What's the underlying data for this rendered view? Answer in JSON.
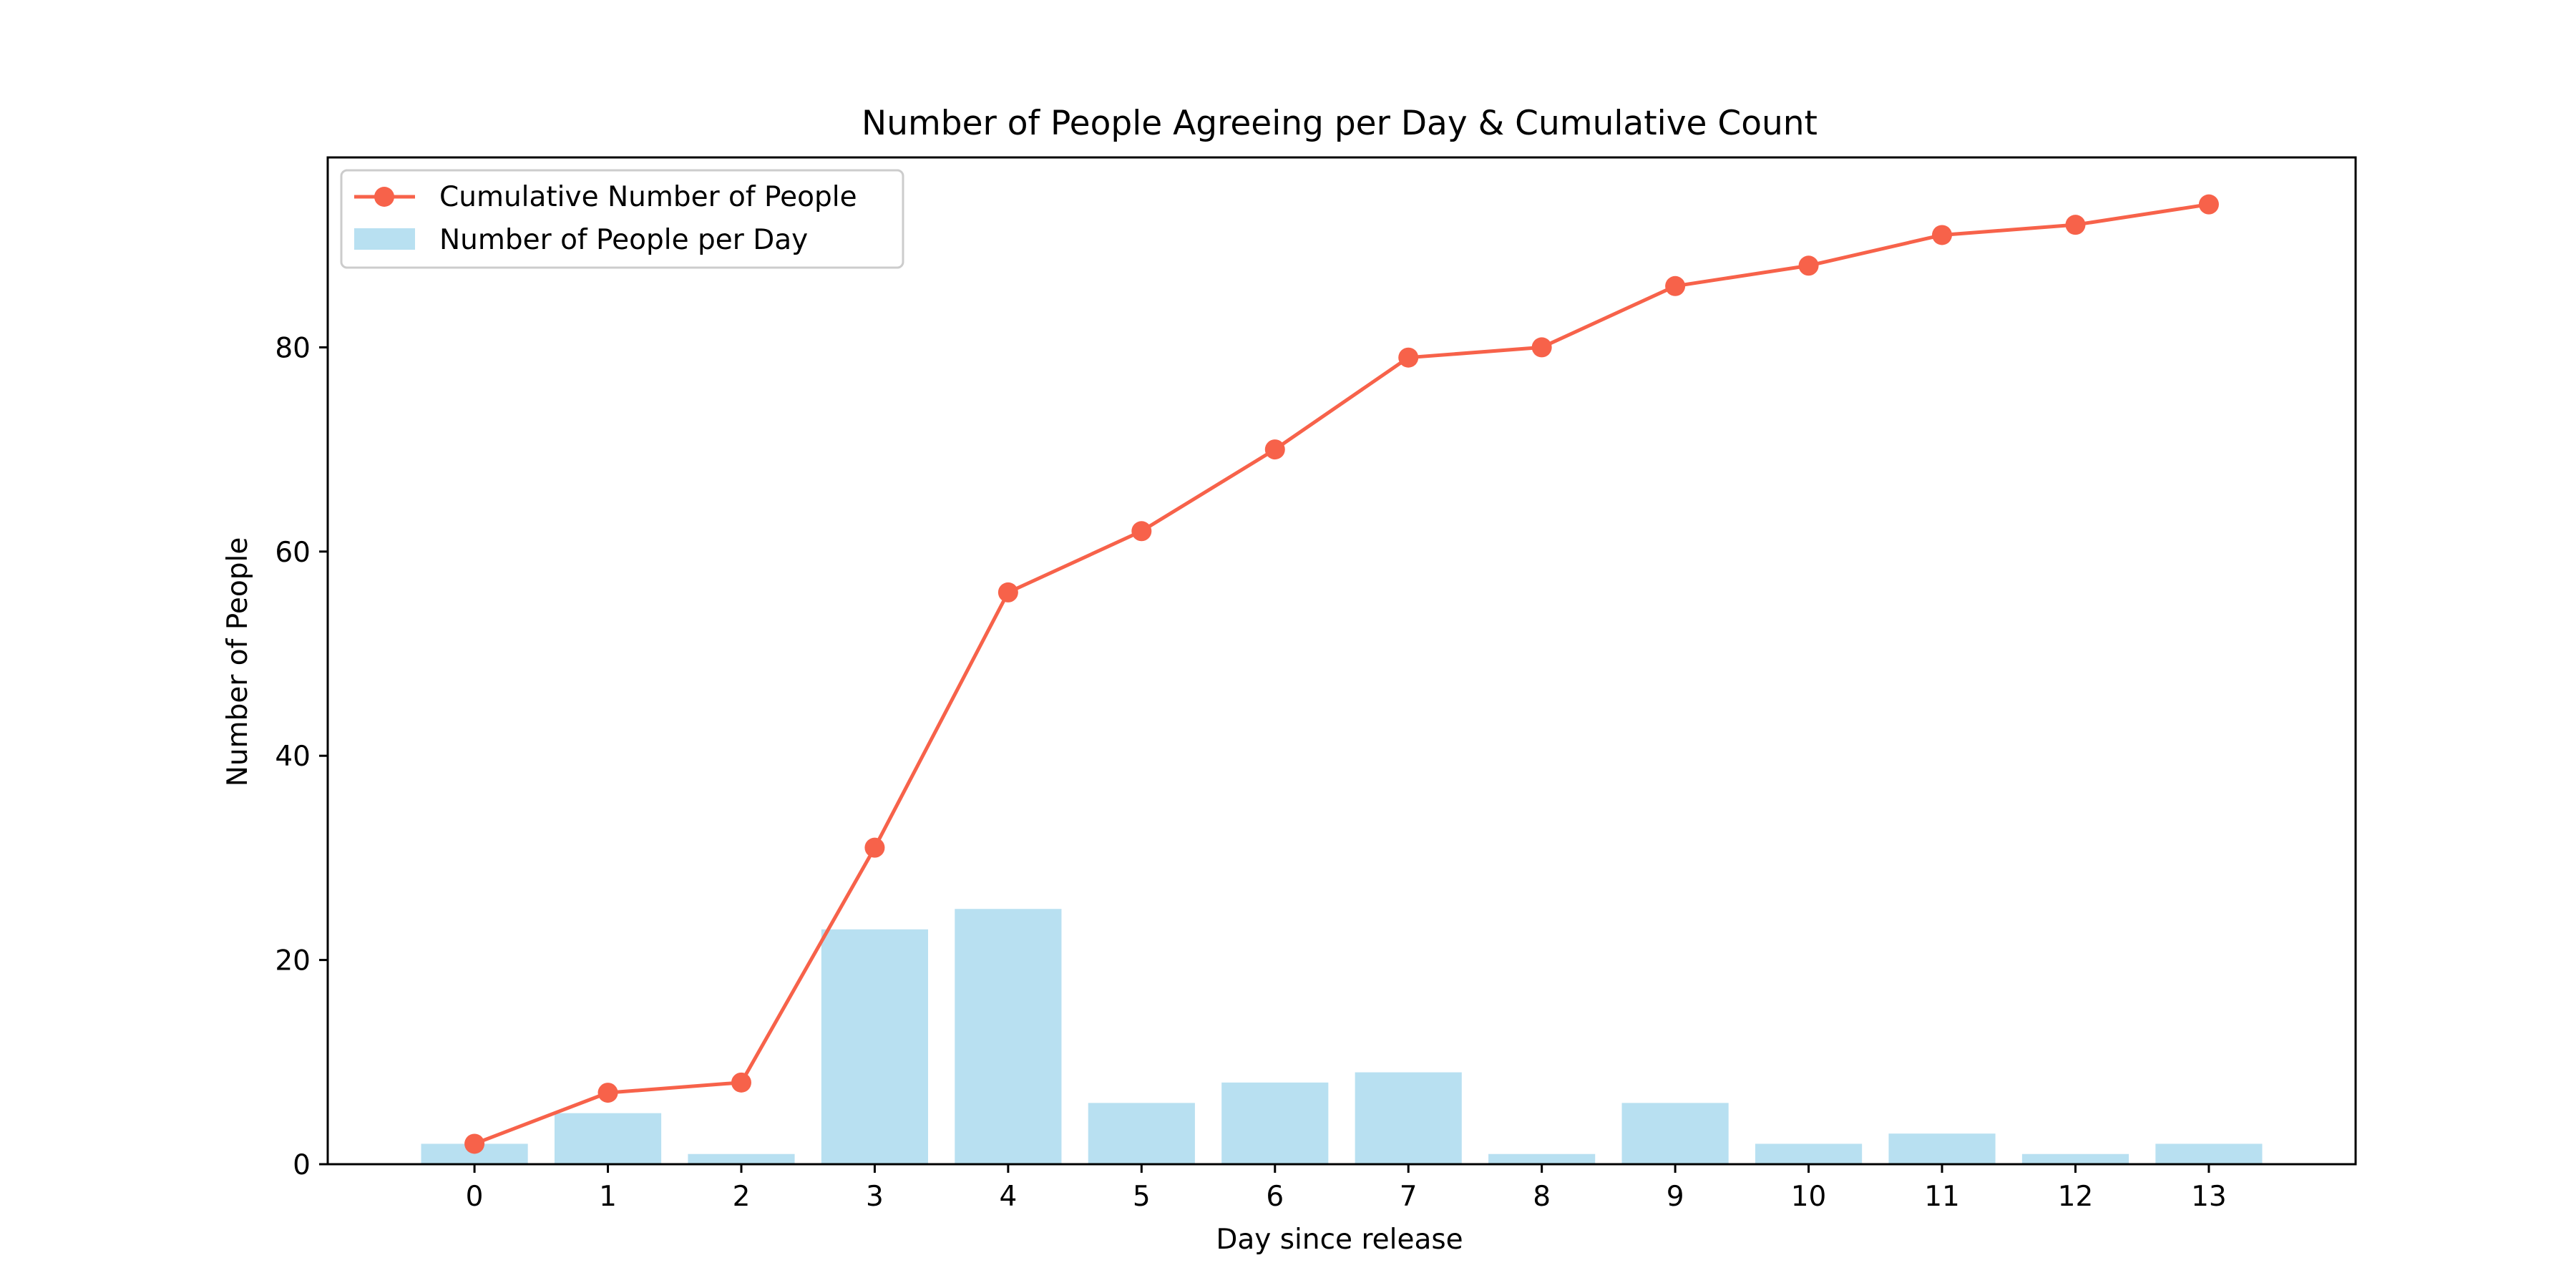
{
  "chart_data": {
    "type": "bar",
    "title": "Number of People Agreeing per Day & Cumulative Count",
    "xlabel": "Day since release",
    "ylabel": "Number of People",
    "x": [
      0,
      1,
      2,
      3,
      4,
      5,
      6,
      7,
      8,
      9,
      10,
      11,
      12,
      13
    ],
    "xlim": [
      -1.1,
      14.1
    ],
    "ylim": [
      0,
      98.6
    ],
    "yticks": [
      0,
      20,
      40,
      60,
      80
    ],
    "grid": false,
    "legend_position": "upper left",
    "series": [
      {
        "name": "Cumulative Number of People",
        "type": "line",
        "marker": "circle",
        "color": "#f7624a",
        "values": [
          2,
          7,
          8,
          31,
          56,
          62,
          70,
          79,
          80,
          86,
          88,
          91,
          92,
          94
        ]
      },
      {
        "name": "Number of People per Day",
        "type": "bar",
        "color": "#b8e0f1",
        "values": [
          2,
          5,
          1,
          23,
          25,
          6,
          8,
          9,
          1,
          6,
          2,
          3,
          1,
          2
        ]
      }
    ]
  }
}
